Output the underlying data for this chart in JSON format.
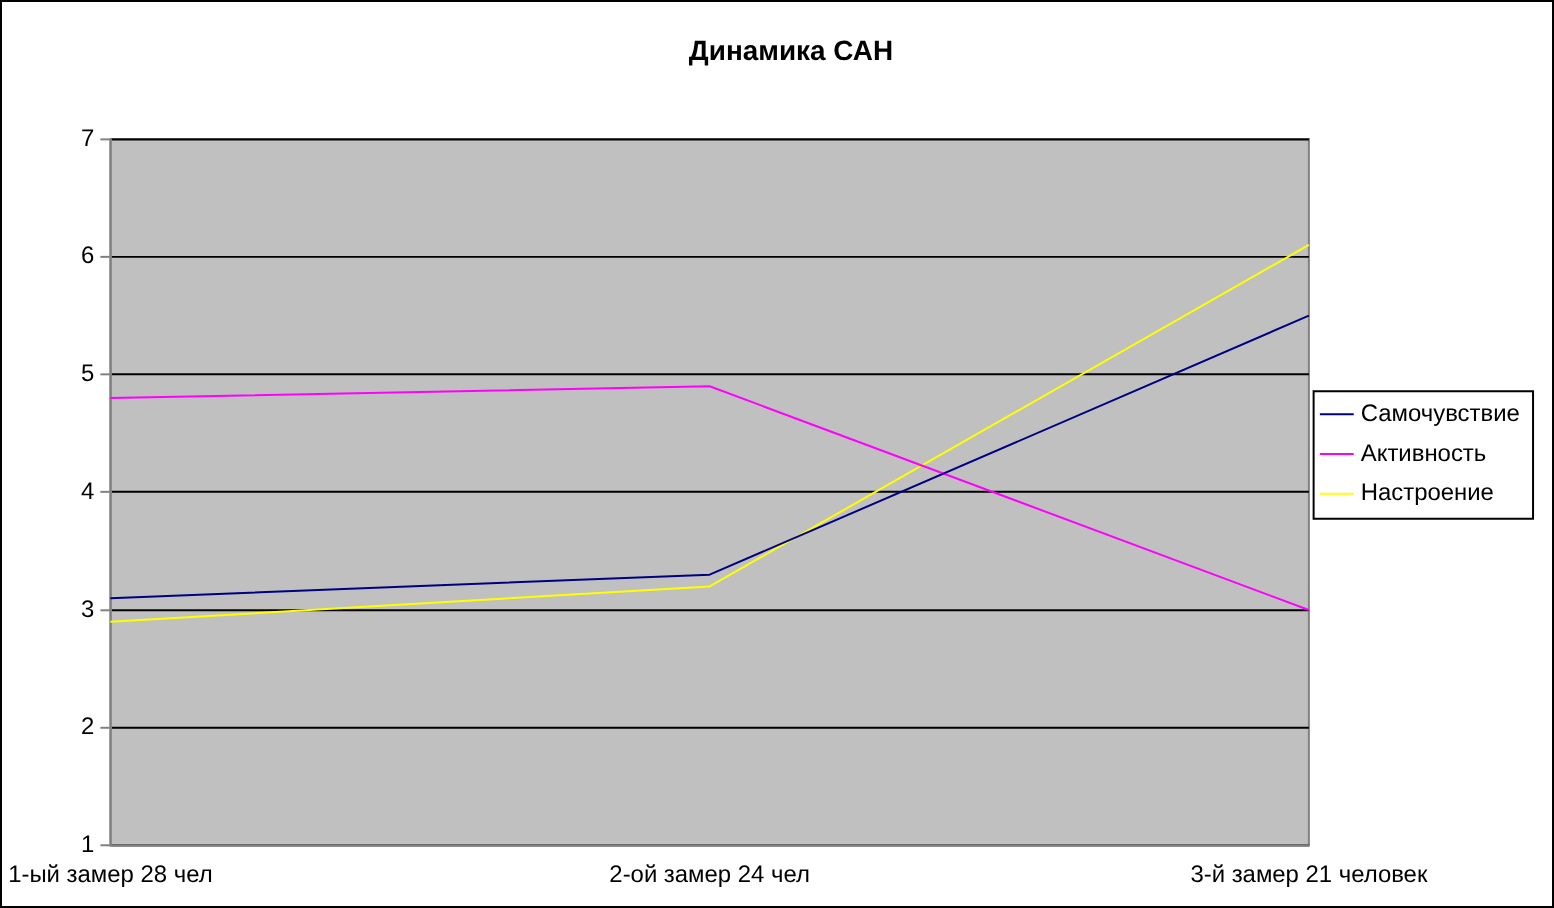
{
  "chart_data": {
    "type": "line",
    "title": "Динамика САН",
    "categories": [
      "1-ый замер 28 чел",
      "2-ой замер 24 чел",
      "3-й замер 21 человек"
    ],
    "series": [
      {
        "name": "Самочувствие",
        "color": "#000080",
        "values": [
          3.1,
          3.3,
          5.5
        ]
      },
      {
        "name": "Активность",
        "color": "#ff00ff",
        "values": [
          4.8,
          4.9,
          3.0
        ]
      },
      {
        "name": "Настроение",
        "color": "#ffff00",
        "values": [
          2.9,
          3.2,
          6.1
        ]
      }
    ],
    "ylim": [
      1,
      7
    ],
    "yticks": [
      1,
      2,
      3,
      4,
      5,
      6,
      7
    ],
    "grid": "y",
    "legend": "right",
    "marker": "none"
  }
}
